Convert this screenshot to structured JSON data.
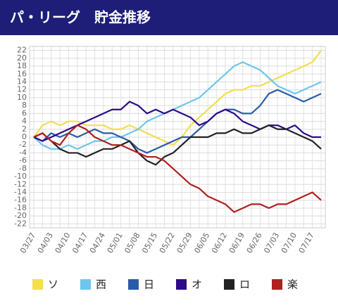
{
  "chart_data": {
    "type": "line",
    "title": "パ・リーグ　貯金推移",
    "categories": [
      "03/27",
      null,
      "04/03",
      null,
      "04/10",
      null,
      "04/17",
      null,
      "04/24",
      null,
      "05/01",
      null,
      "05/08",
      null,
      "05/15",
      null,
      "05/22",
      null,
      "05/29",
      null,
      "06/05",
      null,
      "06/12",
      null,
      "06/19",
      null,
      "06/26",
      null,
      "07/03",
      null,
      "07/10",
      null,
      "07/17",
      null
    ],
    "ylim": [
      -23,
      23
    ],
    "yticks": [
      -22,
      -20,
      -18,
      -16,
      -14,
      -12,
      -10,
      -8,
      -6,
      -4,
      -2,
      0,
      2,
      4,
      6,
      8,
      10,
      12,
      14,
      16,
      18,
      20,
      22
    ],
    "grid": true,
    "series": [
      {
        "name": "ソ",
        "color": "#f2df4b",
        "values": [
          0,
          3,
          4,
          3,
          4,
          4,
          3,
          3,
          3,
          2,
          2,
          3,
          2,
          1,
          0,
          -1,
          -2,
          0,
          3,
          5,
          7,
          9,
          11,
          12,
          12,
          13,
          13,
          14,
          15,
          16,
          17,
          18,
          19,
          22
        ]
      },
      {
        "name": "西",
        "color": "#6cc6ee",
        "values": [
          0,
          -2,
          -3,
          -3,
          -2,
          -3,
          -2,
          -1,
          -1,
          0,
          0,
          1,
          2,
          4,
          5,
          6,
          7,
          8,
          9,
          10,
          12,
          14,
          16,
          18,
          19,
          18,
          17,
          15,
          13,
          12,
          11,
          12,
          13,
          14
        ]
      },
      {
        "name": "日",
        "color": "#2b5ba8",
        "values": [
          0,
          -1,
          1,
          0,
          1,
          0,
          1,
          2,
          1,
          1,
          0,
          -1,
          -3,
          -4,
          -3,
          -2,
          -1,
          0,
          0,
          2,
          4,
          6,
          7,
          7,
          6,
          6,
          8,
          11,
          12,
          11,
          10,
          9,
          10,
          11
        ]
      },
      {
        "name": "オ",
        "color": "#2c0a8a",
        "values": [
          0,
          -1,
          0,
          1,
          2,
          3,
          4,
          5,
          6,
          7,
          7,
          9,
          8,
          6,
          7,
          6,
          7,
          6,
          5,
          3,
          4,
          6,
          7,
          6,
          4,
          3,
          2,
          3,
          3,
          2,
          3,
          1,
          0,
          0
        ]
      },
      {
        "name": "ロ",
        "color": "#222222",
        "values": [
          0,
          1,
          -1,
          -3,
          -4,
          -4,
          -5,
          -4,
          -3,
          -3,
          -2,
          -1,
          -4,
          -6,
          -7,
          -5,
          -4,
          -2,
          0,
          0,
          0,
          1,
          1,
          2,
          1,
          1,
          2,
          3,
          2,
          2,
          1,
          0,
          -1,
          -3
        ]
      },
      {
        "name": "楽",
        "color": "#b0201e",
        "values": [
          0,
          1,
          -1,
          -2,
          1,
          3,
          2,
          0,
          -1,
          -2,
          -2,
          -3,
          -4,
          -5,
          -5,
          -6,
          -8,
          -10,
          -12,
          -13,
          -15,
          -16,
          -17,
          -19,
          -18,
          -17,
          -17,
          -18,
          -17,
          -17,
          -16,
          -15,
          -14,
          -16
        ]
      }
    ]
  }
}
